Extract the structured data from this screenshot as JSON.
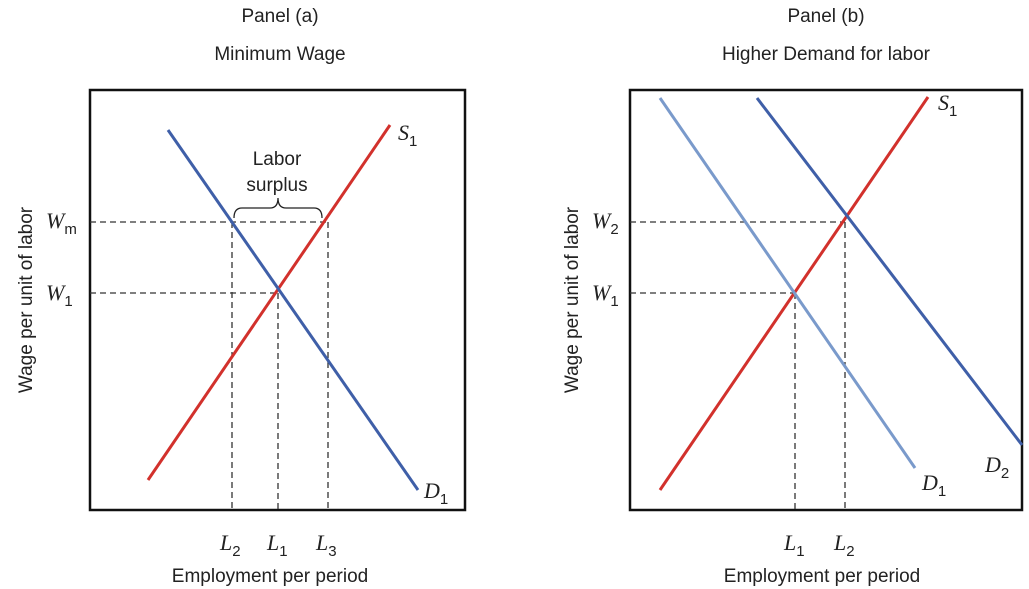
{
  "panels": [
    {
      "title": "Panel (a)",
      "subtitle": "Minimum Wage",
      "y_axis_label": "Wage per unit of labor",
      "x_axis_label": "Employment per period",
      "annotation_lines": [
        "Labor",
        "surplus"
      ],
      "curves": [
        {
          "main": "S",
          "sub": "1"
        },
        {
          "main": "D",
          "sub": "1"
        }
      ],
      "y_labels": [
        {
          "main": "W",
          "sub": "m"
        },
        {
          "main": "W",
          "sub": "1"
        }
      ],
      "x_labels": [
        {
          "main": "L",
          "sub": "2"
        },
        {
          "main": "L",
          "sub": "1"
        },
        {
          "main": "L",
          "sub": "3"
        }
      ]
    },
    {
      "title": "Panel (b)",
      "subtitle": "Higher Demand for labor",
      "y_axis_label": "Wage per unit of labor",
      "x_axis_label": "Employment per period",
      "curves": [
        {
          "main": "S",
          "sub": "1"
        },
        {
          "main": "D",
          "sub": "1"
        },
        {
          "main": "D",
          "sub": "2"
        }
      ],
      "y_labels": [
        {
          "main": "W",
          "sub": "2"
        },
        {
          "main": "W",
          "sub": "1"
        }
      ],
      "x_labels": [
        {
          "main": "L",
          "sub": "1"
        },
        {
          "main": "L",
          "sub": "2"
        }
      ]
    }
  ]
}
